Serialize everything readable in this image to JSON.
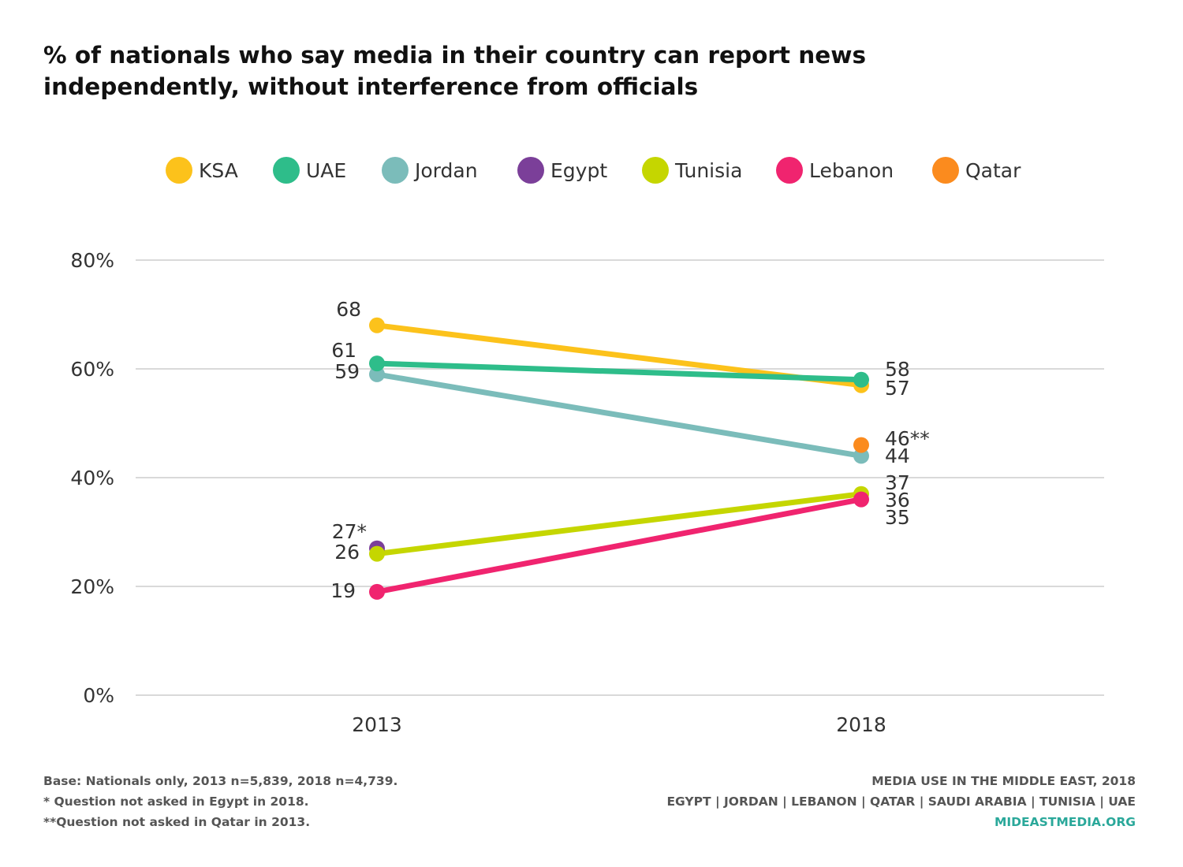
{
  "title_lines": [
    "% of nationals who say media in their country can report news",
    "independently, without interference from officials"
  ],
  "legend": [
    {
      "label": "KSA",
      "color": "#fcc21b"
    },
    {
      "label": "UAE",
      "color": "#2ebd8a"
    },
    {
      "label": "Jordan",
      "color": "#7bbcba"
    },
    {
      "label": "Egypt",
      "color": "#7b3f99"
    },
    {
      "label": "Tunisia",
      "color": "#c5d600"
    },
    {
      "label": "Lebanon",
      "color": "#f0246f"
    },
    {
      "label": "Qatar",
      "color": "#fb8b1e"
    }
  ],
  "chart_data": {
    "type": "line",
    "title": "% of nationals who say media in their country can report news independently, without interference from officials",
    "x": [
      "2013",
      "2018"
    ],
    "ylim": [
      0,
      80
    ],
    "yticks": [
      0,
      20,
      40,
      60,
      80
    ],
    "ytick_labels": [
      "0%",
      "20%",
      "40%",
      "60%",
      "80%"
    ],
    "grid": true,
    "legend_position": "top",
    "series": [
      {
        "name": "KSA",
        "color": "#fcc21b",
        "values": [
          68,
          57
        ],
        "labels": [
          "68",
          "57"
        ]
      },
      {
        "name": "UAE",
        "color": "#2ebd8a",
        "values": [
          61,
          58
        ],
        "labels": [
          "61",
          "58"
        ]
      },
      {
        "name": "Jordan",
        "color": "#7bbcba",
        "values": [
          59,
          44
        ],
        "labels": [
          "59",
          "44"
        ]
      },
      {
        "name": "Egypt",
        "color": "#7b3f99",
        "values": [
          27,
          null
        ],
        "labels": [
          "27*",
          null
        ]
      },
      {
        "name": "Tunisia",
        "color": "#c5d600",
        "values": [
          26,
          37
        ],
        "labels": [
          "26",
          "37"
        ]
      },
      {
        "name": "Lebanon",
        "color": "#f0246f",
        "values": [
          19,
          36
        ],
        "labels": [
          "19",
          "36"
        ]
      },
      {
        "name": "Qatar",
        "color": "#fb8b1e",
        "values": [
          null,
          46
        ],
        "labels": [
          null,
          "46**"
        ]
      }
    ],
    "extra_labels": [
      {
        "x": "2018",
        "value": 35,
        "text": "35"
      }
    ]
  },
  "footer": {
    "left": [
      "Base: Nationals only, 2013 n=5,839, 2018 n=4,739.",
      "* Question not asked in Egypt in 2018.",
      "**Question not asked in Qatar in 2013."
    ],
    "right": [
      "MEDIA USE IN THE MIDDLE EAST, 2018",
      "EGYPT | JORDAN | LEBANON | QATAR | SAUDI ARABIA | TUNISIA | UAE"
    ],
    "site": "MIDEASTMEDIA.ORG"
  }
}
